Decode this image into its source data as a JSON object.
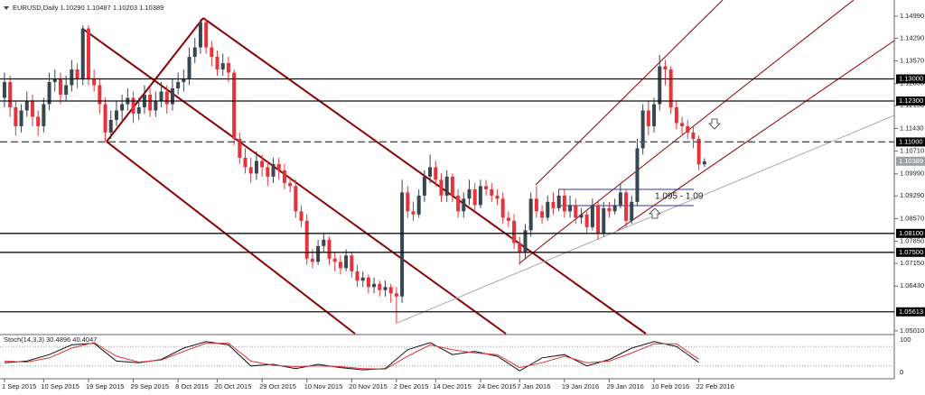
{
  "chart_data": [
    {
      "type": "candlestick",
      "title": "EURUSD,Daily  1.10290 1.10487 1.10203 1.10389",
      "bull_color": "#37474f",
      "bear_color": "#e5323b",
      "xlim": [
        -0.8,
        158.9
      ],
      "ylim": [
        1.0492,
        1.1536
      ],
      "yticks": [
        {
          "value": 1.1499,
          "label": "1.14990"
        },
        {
          "value": 1.1429,
          "label": "1.14290"
        },
        {
          "value": 1.1357,
          "label": "1.13570"
        },
        {
          "value": 1.1285,
          "label": "1.12850"
        },
        {
          "value": 1.1215,
          "label": "1.12150"
        },
        {
          "value": 1.1143,
          "label": "1.11430"
        },
        {
          "value": 1.1071,
          "label": "1.10710"
        },
        {
          "value": 1.0999,
          "label": "1.09990"
        },
        {
          "value": 1.0929,
          "label": "1.09290"
        },
        {
          "value": 1.0857,
          "label": "1.08570"
        },
        {
          "value": 1.0785,
          "label": "1.07850"
        },
        {
          "value": 1.0715,
          "label": "1.07150"
        },
        {
          "value": 1.0643,
          "label": "1.06430"
        },
        {
          "value": 1.0501,
          "label": "1.05010"
        }
      ],
      "xticks": [
        {
          "value": 0,
          "label": "1 Sep 2015"
        },
        {
          "value": 7,
          "label": "10 Sep 2015"
        },
        {
          "value": 15,
          "label": "19 Sep 2015"
        },
        {
          "value": 23,
          "label": "29 Sep 2015"
        },
        {
          "value": 31,
          "label": "8 Oct 2015"
        },
        {
          "value": 38,
          "label": "20 Oct 2015"
        },
        {
          "value": 46,
          "label": "29 Oct 2015"
        },
        {
          "value": 54,
          "label": "10 Nov 2015"
        },
        {
          "value": 62,
          "label": "20 Nov 2015"
        },
        {
          "value": 70,
          "label": "2 Dec 2015"
        },
        {
          "value": 77,
          "label": "14 Dec 2015"
        },
        {
          "value": 85,
          "label": "24 Dec 2015"
        },
        {
          "value": 92,
          "label": "7 Jan 2016"
        },
        {
          "value": 100,
          "label": "19 Jan 2016"
        },
        {
          "value": 108,
          "label": "29 Jan 2016"
        },
        {
          "value": 116,
          "label": "10 Feb 2016"
        },
        {
          "value": 124,
          "label": "22 Feb 2016"
        }
      ],
      "levels": [
        {
          "value": 1.13,
          "label": "1.13000",
          "style": "solid"
        },
        {
          "value": 1.123,
          "label": "1.12300",
          "style": "solid"
        },
        {
          "value": 1.11,
          "label": "1.11000",
          "style": "dashed"
        },
        {
          "value": 1.10389,
          "label": "1.10389",
          "style": "current"
        },
        {
          "value": 1.081,
          "label": "1.08100",
          "style": "solid"
        },
        {
          "value": 1.075,
          "label": "1.07500",
          "style": "solid"
        },
        {
          "value": 1.05613,
          "label": "1.05613",
          "style": "solid"
        }
      ],
      "annotation": "1.095 - 1.09",
      "candles": [
        [
          1.124,
          1.132,
          1.121,
          1.129
        ],
        [
          1.129,
          1.131,
          1.118,
          1.121
        ],
        [
          1.121,
          1.123,
          1.112,
          1.115
        ],
        [
          1.115,
          1.122,
          1.113,
          1.12
        ],
        [
          1.12,
          1.126,
          1.118,
          1.123
        ],
        [
          1.123,
          1.125,
          1.115,
          1.118
        ],
        [
          1.118,
          1.12,
          1.112,
          1.115
        ],
        [
          1.115,
          1.124,
          1.113,
          1.122
        ],
        [
          1.122,
          1.132,
          1.12,
          1.129
        ],
        [
          1.129,
          1.133,
          1.126,
          1.13
        ],
        [
          1.13,
          1.132,
          1.122,
          1.125
        ],
        [
          1.125,
          1.131,
          1.123,
          1.128
        ],
        [
          1.128,
          1.136,
          1.126,
          1.133
        ],
        [
          1.133,
          1.135,
          1.127,
          1.13
        ],
        [
          1.13,
          1.147,
          1.128,
          1.146
        ],
        [
          1.146,
          1.147,
          1.128,
          1.13
        ],
        [
          1.13,
          1.133,
          1.126,
          1.128
        ],
        [
          1.128,
          1.13,
          1.119,
          1.122
        ],
        [
          1.122,
          1.124,
          1.11,
          1.113
        ],
        [
          1.113,
          1.12,
          1.111,
          1.117
        ],
        [
          1.117,
          1.123,
          1.115,
          1.12
        ],
        [
          1.12,
          1.125,
          1.117,
          1.122
        ],
        [
          1.122,
          1.127,
          1.12,
          1.124
        ],
        [
          1.124,
          1.126,
          1.116,
          1.119
        ],
        [
          1.119,
          1.124,
          1.117,
          1.121
        ],
        [
          1.121,
          1.128,
          1.119,
          1.125
        ],
        [
          1.125,
          1.127,
          1.118,
          1.12
        ],
        [
          1.12,
          1.126,
          1.118,
          1.123
        ],
        [
          1.123,
          1.129,
          1.121,
          1.126
        ],
        [
          1.126,
          1.128,
          1.119,
          1.122
        ],
        [
          1.122,
          1.13,
          1.12,
          1.127
        ],
        [
          1.127,
          1.132,
          1.125,
          1.129
        ],
        [
          1.129,
          1.133,
          1.126,
          1.13
        ],
        [
          1.13,
          1.14,
          1.128,
          1.137
        ],
        [
          1.137,
          1.143,
          1.135,
          1.14
        ],
        [
          1.14,
          1.149,
          1.138,
          1.148
        ],
        [
          1.148,
          1.149,
          1.138,
          1.14
        ],
        [
          1.14,
          1.142,
          1.134,
          1.137
        ],
        [
          1.137,
          1.139,
          1.131,
          1.133
        ],
        [
          1.133,
          1.138,
          1.131,
          1.135
        ],
        [
          1.135,
          1.137,
          1.129,
          1.132
        ],
        [
          1.132,
          1.133,
          1.109,
          1.111
        ],
        [
          1.111,
          1.113,
          1.103,
          1.105
        ],
        [
          1.105,
          1.108,
          1.1,
          1.102
        ],
        [
          1.102,
          1.105,
          1.097,
          1.1
        ],
        [
          1.1,
          1.107,
          1.098,
          1.104
        ],
        [
          1.104,
          1.106,
          1.099,
          1.102
        ],
        [
          1.102,
          1.104,
          1.096,
          1.099
        ],
        [
          1.099,
          1.105,
          1.097,
          1.103
        ],
        [
          1.103,
          1.105,
          1.098,
          1.101
        ],
        [
          1.101,
          1.103,
          1.095,
          1.097
        ],
        [
          1.097,
          1.099,
          1.094,
          1.096
        ],
        [
          1.096,
          1.098,
          1.086,
          1.088
        ],
        [
          1.088,
          1.09,
          1.083,
          1.085
        ],
        [
          1.085,
          1.087,
          1.071,
          1.073
        ],
        [
          1.073,
          1.076,
          1.07,
          1.072
        ],
        [
          1.072,
          1.079,
          1.071,
          1.077
        ],
        [
          1.077,
          1.081,
          1.075,
          1.079
        ],
        [
          1.079,
          1.08,
          1.071,
          1.073
        ],
        [
          1.073,
          1.075,
          1.069,
          1.072
        ],
        [
          1.072,
          1.074,
          1.068,
          1.07
        ],
        [
          1.07,
          1.076,
          1.069,
          1.074
        ],
        [
          1.074,
          1.075,
          1.067,
          1.069
        ],
        [
          1.069,
          1.071,
          1.064,
          1.066
        ],
        [
          1.066,
          1.069,
          1.064,
          1.067
        ],
        [
          1.067,
          1.068,
          1.062,
          1.064
        ],
        [
          1.064,
          1.067,
          1.062,
          1.065
        ],
        [
          1.065,
          1.066,
          1.061,
          1.063
        ],
        [
          1.063,
          1.066,
          1.061,
          1.064
        ],
        [
          1.064,
          1.065,
          1.059,
          1.062
        ],
        [
          1.062,
          1.064,
          1.0524,
          1.061
        ],
        [
          1.061,
          1.098,
          1.059,
          1.094
        ],
        [
          1.094,
          1.096,
          1.086,
          1.088
        ],
        [
          1.088,
          1.091,
          1.085,
          1.087
        ],
        [
          1.087,
          1.095,
          1.086,
          1.093
        ],
        [
          1.093,
          1.101,
          1.091,
          1.099
        ],
        [
          1.099,
          1.106,
          1.097,
          1.102
        ],
        [
          1.102,
          1.104,
          1.096,
          1.098
        ],
        [
          1.098,
          1.1,
          1.091,
          1.093
        ],
        [
          1.093,
          1.101,
          1.091,
          1.099
        ],
        [
          1.099,
          1.1,
          1.091,
          1.093
        ],
        [
          1.093,
          1.095,
          1.086,
          1.088
        ],
        [
          1.088,
          1.094,
          1.086,
          1.092
        ],
        [
          1.092,
          1.098,
          1.09,
          1.095
        ],
        [
          1.095,
          1.097,
          1.088,
          1.09
        ],
        [
          1.09,
          1.098,
          1.089,
          1.096
        ],
        [
          1.096,
          1.098,
          1.093,
          1.095
        ],
        [
          1.095,
          1.097,
          1.091,
          1.093
        ],
        [
          1.093,
          1.095,
          1.09,
          1.092
        ],
        [
          1.092,
          1.094,
          1.084,
          1.086
        ],
        [
          1.086,
          1.088,
          1.083,
          1.085
        ],
        [
          1.085,
          1.087,
          1.076,
          1.078
        ],
        [
          1.078,
          1.08,
          1.071,
          1.075
        ],
        [
          1.075,
          1.084,
          1.073,
          1.082
        ],
        [
          1.082,
          1.094,
          1.08,
          1.092
        ],
        [
          1.092,
          1.096,
          1.086,
          1.088
        ],
        [
          1.088,
          1.09,
          1.084,
          1.086
        ],
        [
          1.086,
          1.093,
          1.085,
          1.091
        ],
        [
          1.091,
          1.094,
          1.087,
          1.089
        ],
        [
          1.089,
          1.095,
          1.088,
          1.093
        ],
        [
          1.093,
          1.095,
          1.086,
          1.088
        ],
        [
          1.088,
          1.093,
          1.086,
          1.09
        ],
        [
          1.09,
          1.092,
          1.084,
          1.086
        ],
        [
          1.086,
          1.089,
          1.084,
          1.087
        ],
        [
          1.087,
          1.088,
          1.081,
          1.083
        ],
        [
          1.083,
          1.092,
          1.082,
          1.09
        ],
        [
          1.09,
          1.091,
          1.079,
          1.081
        ],
        [
          1.081,
          1.091,
          1.08,
          1.089
        ],
        [
          1.089,
          1.091,
          1.086,
          1.088
        ],
        [
          1.088,
          1.092,
          1.087,
          1.09
        ],
        [
          1.09,
          1.097,
          1.089,
          1.094
        ],
        [
          1.094,
          1.095,
          1.083,
          1.085
        ],
        [
          1.085,
          1.093,
          1.084,
          1.091
        ],
        [
          1.091,
          1.111,
          1.09,
          1.108
        ],
        [
          1.108,
          1.122,
          1.106,
          1.12
        ],
        [
          1.12,
          1.123,
          1.112,
          1.115
        ],
        [
          1.115,
          1.124,
          1.113,
          1.122
        ],
        [
          1.122,
          1.1376,
          1.12,
          1.134
        ],
        [
          1.134,
          1.136,
          1.128,
          1.133
        ],
        [
          1.133,
          1.134,
          1.119,
          1.121
        ],
        [
          1.121,
          1.123,
          1.114,
          1.116
        ],
        [
          1.116,
          1.118,
          1.112,
          1.115
        ],
        [
          1.115,
          1.117,
          1.111,
          1.113
        ],
        [
          1.113,
          1.115,
          1.108,
          1.111
        ],
        [
          1.111,
          1.112,
          1.101,
          1.1029
        ],
        [
          1.1029,
          1.10487,
          1.10203,
          1.10389
        ]
      ]
    },
    {
      "type": "line",
      "title": "Stoch(14,3,3) 30.4896 40.4047",
      "ylim": [
        0,
        100
      ],
      "yticks": [
        0,
        100
      ],
      "levels": [
        20,
        80
      ],
      "x": [
        0,
        4,
        8,
        12,
        16,
        20,
        24,
        28,
        32,
        36,
        40,
        44,
        48,
        52,
        56,
        60,
        64,
        68,
        72,
        76,
        80,
        84,
        88,
        92,
        96,
        100,
        104,
        108,
        112,
        116,
        120,
        124
      ],
      "series": [
        {
          "name": "Main",
          "color": "#111111",
          "values": [
            30,
            35,
            55,
            85,
            90,
            35,
            30,
            40,
            75,
            95,
            85,
            20,
            25,
            12,
            25,
            15,
            8,
            12,
            70,
            92,
            55,
            65,
            50,
            5,
            45,
            55,
            20,
            40,
            75,
            95,
            80,
            30.4896
          ]
        },
        {
          "name": "Signal",
          "color": "#e5323b",
          "values": [
            35,
            32,
            45,
            75,
            92,
            50,
            32,
            38,
            65,
            90,
            90,
            35,
            22,
            18,
            20,
            18,
            12,
            10,
            50,
            85,
            70,
            60,
            55,
            15,
            30,
            50,
            30,
            35,
            60,
            88,
            88,
            40.4047
          ]
        }
      ]
    }
  ]
}
